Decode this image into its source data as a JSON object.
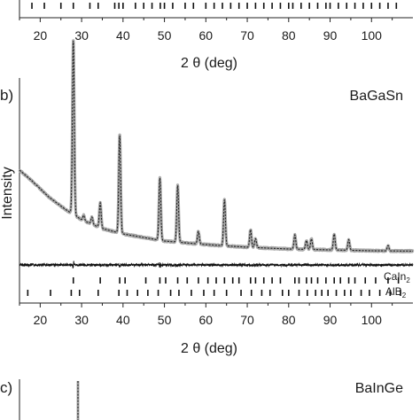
{
  "panels": {
    "a": {
      "xlabel": "2 θ (deg)",
      "x_ticks": [
        20,
        30,
        40,
        50,
        60,
        70,
        80,
        90,
        100
      ],
      "xlim": [
        15,
        110
      ],
      "reflections": [
        18,
        21,
        25,
        28,
        32,
        34,
        38,
        39,
        40,
        43,
        45,
        47,
        49,
        50,
        52,
        55,
        57,
        60,
        62,
        64,
        66,
        68,
        70,
        72,
        74,
        76,
        78,
        80,
        81,
        83,
        85,
        87,
        89,
        90,
        92,
        94,
        96,
        98,
        100,
        102,
        104,
        106
      ]
    },
    "b": {
      "label": "b)",
      "sample": "BaGaSn",
      "ylabel": "Intensity",
      "xlabel": "2 θ (deg)",
      "x_ticks": [
        20,
        30,
        40,
        50,
        60,
        70,
        80,
        90,
        100
      ],
      "xlim": [
        15,
        110
      ],
      "phase1_label": "CaIn",
      "phase1_sub": "2",
      "phase2_label": "AlB",
      "phase2_sub": "2"
    },
    "c": {
      "label": "c)",
      "sample": "BaInGe"
    }
  },
  "chart_data": {
    "type": "line",
    "title": "",
    "xlabel": "2 θ (deg)",
    "ylabel": "Intensity",
    "xlim": [
      15,
      110
    ],
    "ylim": [
      0,
      100
    ],
    "background": {
      "x": [
        15,
        18,
        22,
        26,
        30,
        35,
        40,
        50,
        60,
        70,
        80,
        90,
        100,
        110
      ],
      "y": [
        50,
        44,
        35,
        28,
        22,
        17,
        14,
        10,
        8,
        6.5,
        5.5,
        5,
        4.5,
        4.3
      ]
    },
    "peaks": [
      {
        "x": 28.0,
        "y": 98
      },
      {
        "x": 30.5,
        "y": 3
      },
      {
        "x": 32.5,
        "y": 4
      },
      {
        "x": 34.5,
        "y": 14
      },
      {
        "x": 39.2,
        "y": 55
      },
      {
        "x": 48.9,
        "y": 35
      },
      {
        "x": 53.2,
        "y": 32
      },
      {
        "x": 58.2,
        "y": 7
      },
      {
        "x": 64.5,
        "y": 26
      },
      {
        "x": 70.8,
        "y": 10
      },
      {
        "x": 72.0,
        "y": 5
      },
      {
        "x": 81.5,
        "y": 8
      },
      {
        "x": 84.3,
        "y": 5
      },
      {
        "x": 85.5,
        "y": 6
      },
      {
        "x": 91.0,
        "y": 9
      },
      {
        "x": 94.5,
        "y": 6
      },
      {
        "x": 104.0,
        "y": 3
      }
    ],
    "reflections_phase1": [
      28.0,
      34.5,
      39.2,
      40.5,
      45.5,
      48.9,
      50.3,
      53.2,
      55.5,
      58.2,
      60.5,
      62.5,
      64.5,
      66.5,
      68.0,
      70.8,
      72.0,
      74.0,
      76.0,
      78.0,
      81.5,
      82.5,
      84.3,
      85.5,
      87.0,
      89.0,
      91.0,
      92.5,
      94.5,
      96.0,
      98.5,
      101.0,
      104.0,
      106.5
    ],
    "reflections_phase2": [
      17.0,
      22.5,
      27.5,
      29.5,
      34.0,
      39.0,
      41.0,
      43.5,
      46.0,
      48.5,
      51.5,
      53.5,
      56.5,
      59.5,
      62.0,
      65.0,
      68.5,
      71.0,
      73.5,
      75.5,
      78.5,
      80.0,
      82.5,
      84.5,
      86.5,
      88.0,
      89.5,
      91.5,
      93.5,
      95.0,
      97.5,
      99.5,
      102.0,
      104.5,
      107.0
    ]
  }
}
